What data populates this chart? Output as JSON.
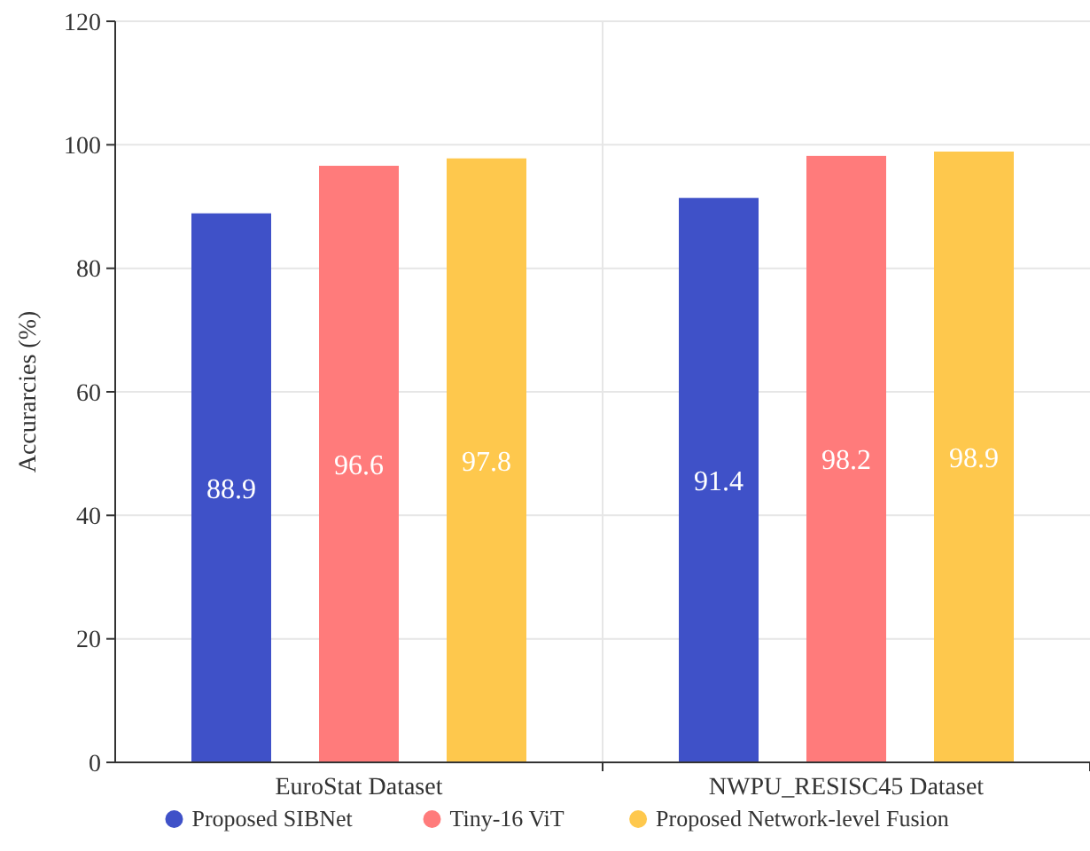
{
  "chart_data": {
    "type": "bar",
    "ylabel": "Accurarcies (%)",
    "categories": [
      "EuroStat Dataset",
      "NWPU_RESISC45 Dataset"
    ],
    "series": [
      {
        "name": "Proposed SIBNet",
        "color": "#3f51c8",
        "values": [
          88.9,
          91.4
        ]
      },
      {
        "name": "Tiny-16 ViT",
        "color": "#ff7b7b",
        "values": [
          96.6,
          98.2
        ]
      },
      {
        "name": "Proposed Network-level Fusion",
        "color": "#fec84d",
        "values": [
          97.8,
          98.9
        ]
      }
    ],
    "ylim": [
      0,
      120
    ],
    "yticks": [
      0,
      20,
      40,
      60,
      80,
      100,
      120
    ],
    "grid": true,
    "legend": "bottom",
    "data_labels": true
  }
}
